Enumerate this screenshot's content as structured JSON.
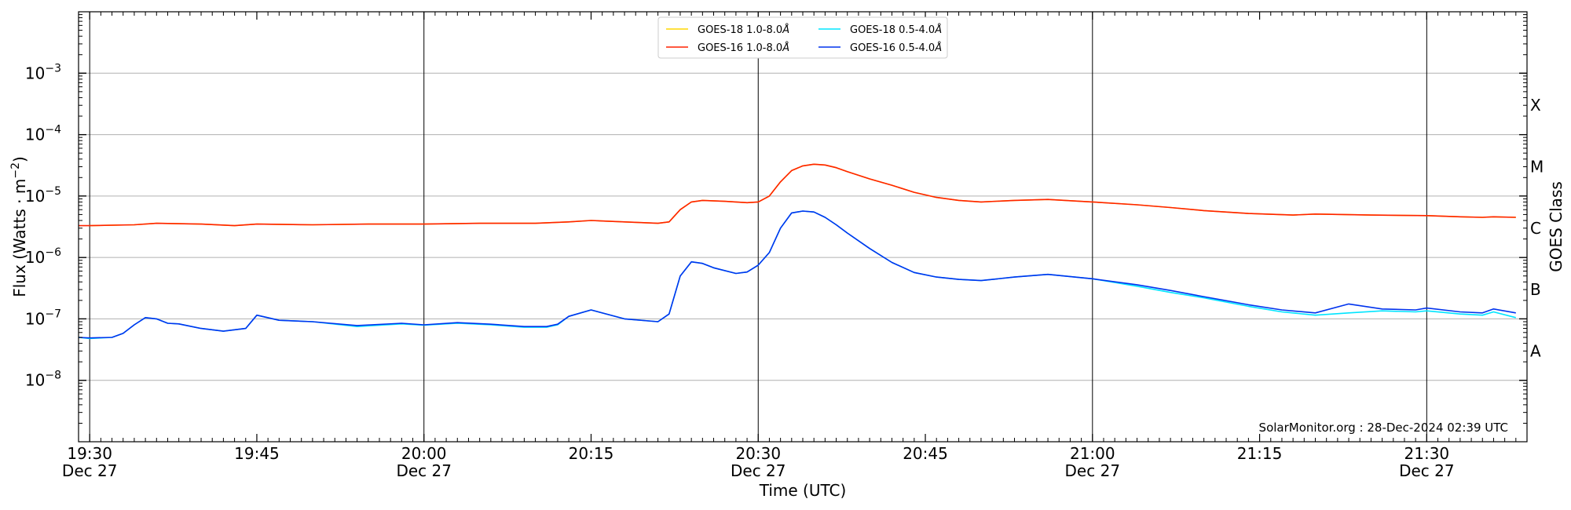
{
  "chart_data": {
    "type": "line",
    "xlabel": "Time (UTC)",
    "ylabel": "Flux (Watts · m",
    "ylabel_sup": "−2",
    "ylabel_close": ")",
    "right_label": "GOES Class",
    "yscale": "log",
    "ylim": [
      1e-09,
      0.01
    ],
    "xlim": [
      "2024-12-27 19:29",
      "2024-12-27 21:39"
    ],
    "credit": "SolarMonitor.org : 28-Dec-2024 02:39 UTC",
    "grid": "horizontal",
    "legend_position": "top-center",
    "x_ticks": [
      {
        "t": "2024-12-27 19:30",
        "line1": "19:30",
        "line2": "Dec 27"
      },
      {
        "t": "2024-12-27 19:45",
        "line1": "19:45",
        "line2": ""
      },
      {
        "t": "2024-12-27 20:00",
        "line1": "20:00",
        "line2": "Dec 27"
      },
      {
        "t": "2024-12-27 20:15",
        "line1": "20:15",
        "line2": ""
      },
      {
        "t": "2024-12-27 20:30",
        "line1": "20:30",
        "line2": "Dec 27"
      },
      {
        "t": "2024-12-27 20:45",
        "line1": "20:45",
        "line2": ""
      },
      {
        "t": "2024-12-27 21:00",
        "line1": "21:00",
        "line2": "Dec 27"
      },
      {
        "t": "2024-12-27 21:15",
        "line1": "21:15",
        "line2": ""
      },
      {
        "t": "2024-12-27 21:30",
        "line1": "21:30",
        "line2": "Dec 27"
      }
    ],
    "vertical_markers": [
      "2024-12-27 19:30",
      "2024-12-27 20:00",
      "2024-12-27 20:30",
      "2024-12-27 21:00",
      "2024-12-27 21:30"
    ],
    "y_ticks": [
      {
        "value": 1e-08,
        "base": "10",
        "exp": "−8"
      },
      {
        "value": 1e-07,
        "base": "10",
        "exp": "−7"
      },
      {
        "value": 1e-06,
        "base": "10",
        "exp": "−6"
      },
      {
        "value": 1e-05,
        "base": "10",
        "exp": "−5"
      },
      {
        "value": 0.0001,
        "base": "10",
        "exp": "−4"
      },
      {
        "value": 0.001,
        "base": "10",
        "exp": "−3"
      }
    ],
    "goes_classes": [
      {
        "label": "A",
        "flux": 3e-08
      },
      {
        "label": "B",
        "flux": 3e-07
      },
      {
        "label": "C",
        "flux": 3e-06
      },
      {
        "label": "M",
        "flux": 3e-05
      },
      {
        "label": "X",
        "flux": 0.0003
      }
    ],
    "series": [
      {
        "name": "GOES-18 1.0-8.0",
        "name_suffix": "Å",
        "color": "#ffd700",
        "x": [
          "2024-12-27 19:30",
          "2024-12-27 19:34",
          "2024-12-27 19:36",
          "2024-12-27 19:40",
          "2024-12-27 19:43",
          "2024-12-27 19:45",
          "2024-12-27 19:50",
          "2024-12-27 19:55",
          "2024-12-27 20:00",
          "2024-12-27 20:05",
          "2024-12-27 20:10",
          "2024-12-27 20:13",
          "2024-12-27 20:15",
          "2024-12-27 20:18",
          "2024-12-27 20:21",
          "2024-12-27 20:22",
          "2024-12-27 20:23",
          "2024-12-27 20:24",
          "2024-12-27 20:25",
          "2024-12-27 20:27",
          "2024-12-27 20:29",
          "2024-12-27 20:30",
          "2024-12-27 20:31",
          "2024-12-27 20:32",
          "2024-12-27 20:33",
          "2024-12-27 20:34",
          "2024-12-27 20:35",
          "2024-12-27 20:36",
          "2024-12-27 20:37",
          "2024-12-27 20:38",
          "2024-12-27 20:40",
          "2024-12-27 20:42",
          "2024-12-27 20:44",
          "2024-12-27 20:46",
          "2024-12-27 20:48",
          "2024-12-27 20:50",
          "2024-12-27 20:53",
          "2024-12-27 20:56",
          "2024-12-27 21:00",
          "2024-12-27 21:04",
          "2024-12-27 21:07",
          "2024-12-27 21:10",
          "2024-12-27 21:14",
          "2024-12-27 21:18",
          "2024-12-27 21:20",
          "2024-12-27 21:25",
          "2024-12-27 21:30",
          "2024-12-27 21:33",
          "2024-12-27 21:35",
          "2024-12-27 21:36",
          "2024-12-27 21:38"
        ],
        "y": [
          3.3e-06,
          3.4e-06,
          3.6e-06,
          3.5e-06,
          3.3e-06,
          3.5e-06,
          3.4e-06,
          3.5e-06,
          3.5e-06,
          3.6e-06,
          3.6e-06,
          3.8e-06,
          4e-06,
          3.8e-06,
          3.6e-06,
          3.8e-06,
          6e-06,
          8e-06,
          8.5e-06,
          8.2e-06,
          7.8e-06,
          8e-06,
          1e-05,
          1.7e-05,
          2.6e-05,
          3.1e-05,
          3.3e-05,
          3.2e-05,
          2.9e-05,
          2.5e-05,
          1.9e-05,
          1.5e-05,
          1.15e-05,
          9.5e-06,
          8.5e-06,
          8e-06,
          8.5e-06,
          8.8e-06,
          8e-06,
          7.2e-06,
          6.5e-06,
          5.8e-06,
          5.2e-06,
          4.9e-06,
          5.1e-06,
          4.9e-06,
          4.8e-06,
          4.6e-06,
          4.5e-06,
          4.6e-06,
          4.5e-06
        ]
      },
      {
        "name": "GOES-16 1.0-8.0",
        "name_suffix": "Å",
        "color": "#ff2200",
        "x": [
          "2024-12-27 19:29",
          "2024-12-27 19:30",
          "2024-12-27 19:34",
          "2024-12-27 19:36",
          "2024-12-27 19:40",
          "2024-12-27 19:43",
          "2024-12-27 19:45",
          "2024-12-27 19:50",
          "2024-12-27 19:55",
          "2024-12-27 20:00",
          "2024-12-27 20:05",
          "2024-12-27 20:10",
          "2024-12-27 20:13",
          "2024-12-27 20:15",
          "2024-12-27 20:18",
          "2024-12-27 20:21",
          "2024-12-27 20:22",
          "2024-12-27 20:23",
          "2024-12-27 20:24",
          "2024-12-27 20:25",
          "2024-12-27 20:27",
          "2024-12-27 20:29",
          "2024-12-27 20:30",
          "2024-12-27 20:31",
          "2024-12-27 20:32",
          "2024-12-27 20:33",
          "2024-12-27 20:34",
          "2024-12-27 20:35",
          "2024-12-27 20:36",
          "2024-12-27 20:37",
          "2024-12-27 20:38",
          "2024-12-27 20:40",
          "2024-12-27 20:42",
          "2024-12-27 20:44",
          "2024-12-27 20:46",
          "2024-12-27 20:48",
          "2024-12-27 20:50",
          "2024-12-27 20:53",
          "2024-12-27 20:56",
          "2024-12-27 21:00",
          "2024-12-27 21:04",
          "2024-12-27 21:07",
          "2024-12-27 21:10",
          "2024-12-27 21:14",
          "2024-12-27 21:18",
          "2024-12-27 21:20",
          "2024-12-27 21:25",
          "2024-12-27 21:30",
          "2024-12-27 21:33",
          "2024-12-27 21:35",
          "2024-12-27 21:36",
          "2024-12-27 21:38"
        ],
        "y": [
          3.3e-06,
          3.3e-06,
          3.4e-06,
          3.6e-06,
          3.5e-06,
          3.3e-06,
          3.5e-06,
          3.4e-06,
          3.5e-06,
          3.5e-06,
          3.6e-06,
          3.6e-06,
          3.8e-06,
          4e-06,
          3.8e-06,
          3.6e-06,
          3.8e-06,
          6e-06,
          8e-06,
          8.5e-06,
          8.2e-06,
          7.8e-06,
          8e-06,
          1e-05,
          1.7e-05,
          2.6e-05,
          3.1e-05,
          3.3e-05,
          3.2e-05,
          2.9e-05,
          2.5e-05,
          1.9e-05,
          1.5e-05,
          1.15e-05,
          9.5e-06,
          8.5e-06,
          8e-06,
          8.5e-06,
          8.8e-06,
          8e-06,
          7.2e-06,
          6.5e-06,
          5.8e-06,
          5.2e-06,
          4.9e-06,
          5.1e-06,
          4.9e-06,
          4.8e-06,
          4.6e-06,
          4.5e-06,
          4.6e-06,
          4.5e-06
        ]
      },
      {
        "name": "GOES-18 0.5-4.0",
        "name_suffix": "Å",
        "color": "#00e5ff",
        "x": [
          "2024-12-27 19:29",
          "2024-12-27 19:30",
          "2024-12-27 19:32",
          "2024-12-27 19:33",
          "2024-12-27 19:34",
          "2024-12-27 19:35",
          "2024-12-27 19:36",
          "2024-12-27 19:37",
          "2024-12-27 19:38",
          "2024-12-27 19:40",
          "2024-12-27 19:42",
          "2024-12-27 19:44",
          "2024-12-27 19:45",
          "2024-12-27 19:47",
          "2024-12-27 19:50",
          "2024-12-27 19:54",
          "2024-12-27 19:58",
          "2024-12-27 20:00",
          "2024-12-27 20:03",
          "2024-12-27 20:06",
          "2024-12-27 20:09",
          "2024-12-27 20:11",
          "2024-12-27 20:12",
          "2024-12-27 20:13",
          "2024-12-27 20:15",
          "2024-12-27 20:18",
          "2024-12-27 20:21",
          "2024-12-27 20:22",
          "2024-12-27 20:23",
          "2024-12-27 20:24",
          "2024-12-27 20:25",
          "2024-12-27 20:26",
          "2024-12-27 20:28",
          "2024-12-27 20:29",
          "2024-12-27 20:30",
          "2024-12-27 20:31",
          "2024-12-27 20:32",
          "2024-12-27 20:33",
          "2024-12-27 20:34",
          "2024-12-27 20:35",
          "2024-12-27 20:36",
          "2024-12-27 20:37",
          "2024-12-27 20:38",
          "2024-12-27 20:40",
          "2024-12-27 20:42",
          "2024-12-27 20:44",
          "2024-12-27 20:46",
          "2024-12-27 20:48",
          "2024-12-27 20:50",
          "2024-12-27 20:53",
          "2024-12-27 20:56",
          "2024-12-27 21:00",
          "2024-12-27 21:04",
          "2024-12-27 21:07",
          "2024-12-27 21:10",
          "2024-12-27 21:14",
          "2024-12-27 21:17",
          "2024-12-27 21:20",
          "2024-12-27 21:23",
          "2024-12-27 21:26",
          "2024-12-27 21:29",
          "2024-12-27 21:30",
          "2024-12-27 21:33",
          "2024-12-27 21:35",
          "2024-12-27 21:36",
          "2024-12-27 21:38"
        ],
        "y": [
          5e-08,
          4.8e-08,
          5e-08,
          5.8e-08,
          8e-08,
          1.05e-07,
          1e-07,
          8.5e-08,
          8.3e-08,
          7e-08,
          6.3e-08,
          7e-08,
          1.15e-07,
          9.5e-08,
          9e-08,
          7.5e-08,
          8.3e-08,
          7.9e-08,
          8.5e-08,
          8e-08,
          7.3e-08,
          7.3e-08,
          8e-08,
          1.1e-07,
          1.4e-07,
          1e-07,
          9e-08,
          1.2e-07,
          5e-07,
          8.5e-07,
          8e-07,
          6.8e-07,
          5.5e-07,
          5.8e-07,
          7.5e-07,
          1.2e-06,
          3e-06,
          5.3e-06,
          5.7e-06,
          5.5e-06,
          4.5e-06,
          3.4e-06,
          2.5e-06,
          1.4e-06,
          8.3e-07,
          5.7e-07,
          4.8e-07,
          4.4e-07,
          4.2e-07,
          4.8e-07,
          5.3e-07,
          4.5e-07,
          3.4e-07,
          2.7e-07,
          2.2e-07,
          1.6e-07,
          1.3e-07,
          1.15e-07,
          1.25e-07,
          1.35e-07,
          1.3e-07,
          1.35e-07,
          1.2e-07,
          1.15e-07,
          1.3e-07,
          1.05e-07
        ]
      },
      {
        "name": "GOES-16 0.5-4.0",
        "name_suffix": "Å",
        "color": "#0033ee",
        "x": [
          "2024-12-27 19:29",
          "2024-12-27 19:30",
          "2024-12-27 19:32",
          "2024-12-27 19:33",
          "2024-12-27 19:34",
          "2024-12-27 19:35",
          "2024-12-27 19:36",
          "2024-12-27 19:37",
          "2024-12-27 19:38",
          "2024-12-27 19:40",
          "2024-12-27 19:42",
          "2024-12-27 19:44",
          "2024-12-27 19:45",
          "2024-12-27 19:47",
          "2024-12-27 19:50",
          "2024-12-27 19:54",
          "2024-12-27 19:58",
          "2024-12-27 20:00",
          "2024-12-27 20:03",
          "2024-12-27 20:06",
          "2024-12-27 20:09",
          "2024-12-27 20:11",
          "2024-12-27 20:12",
          "2024-12-27 20:13",
          "2024-12-27 20:15",
          "2024-12-27 20:18",
          "2024-12-27 20:21",
          "2024-12-27 20:22",
          "2024-12-27 20:23",
          "2024-12-27 20:24",
          "2024-12-27 20:25",
          "2024-12-27 20:26",
          "2024-12-27 20:28",
          "2024-12-27 20:29",
          "2024-12-27 20:30",
          "2024-12-27 20:31",
          "2024-12-27 20:32",
          "2024-12-27 20:33",
          "2024-12-27 20:34",
          "2024-12-27 20:35",
          "2024-12-27 20:36",
          "2024-12-27 20:37",
          "2024-12-27 20:38",
          "2024-12-27 20:40",
          "2024-12-27 20:42",
          "2024-12-27 20:44",
          "2024-12-27 20:46",
          "2024-12-27 20:48",
          "2024-12-27 20:50",
          "2024-12-27 20:53",
          "2024-12-27 20:56",
          "2024-12-27 21:00",
          "2024-12-27 21:04",
          "2024-12-27 21:07",
          "2024-12-27 21:10",
          "2024-12-27 21:14",
          "2024-12-27 21:17",
          "2024-12-27 21:20",
          "2024-12-27 21:23",
          "2024-12-27 21:26",
          "2024-12-27 21:29",
          "2024-12-27 21:30",
          "2024-12-27 21:33",
          "2024-12-27 21:35",
          "2024-12-27 21:36",
          "2024-12-27 21:38"
        ],
        "y": [
          5e-08,
          4.9e-08,
          5e-08,
          5.8e-08,
          8e-08,
          1.05e-07,
          1e-07,
          8.5e-08,
          8.3e-08,
          7e-08,
          6.3e-08,
          7e-08,
          1.15e-07,
          9.5e-08,
          9e-08,
          7.8e-08,
          8.5e-08,
          8e-08,
          8.7e-08,
          8.2e-08,
          7.5e-08,
          7.5e-08,
          8.2e-08,
          1.1e-07,
          1.4e-07,
          1e-07,
          9e-08,
          1.2e-07,
          5e-07,
          8.5e-07,
          8e-07,
          6.8e-07,
          5.5e-07,
          5.8e-07,
          7.5e-07,
          1.2e-06,
          3e-06,
          5.3e-06,
          5.7e-06,
          5.5e-06,
          4.5e-06,
          3.4e-06,
          2.5e-06,
          1.4e-06,
          8.3e-07,
          5.7e-07,
          4.8e-07,
          4.4e-07,
          4.2e-07,
          4.8e-07,
          5.3e-07,
          4.5e-07,
          3.6e-07,
          2.9e-07,
          2.3e-07,
          1.7e-07,
          1.4e-07,
          1.25e-07,
          1.75e-07,
          1.45e-07,
          1.4e-07,
          1.5e-07,
          1.3e-07,
          1.25e-07,
          1.45e-07,
          1.25e-07
        ]
      }
    ]
  }
}
